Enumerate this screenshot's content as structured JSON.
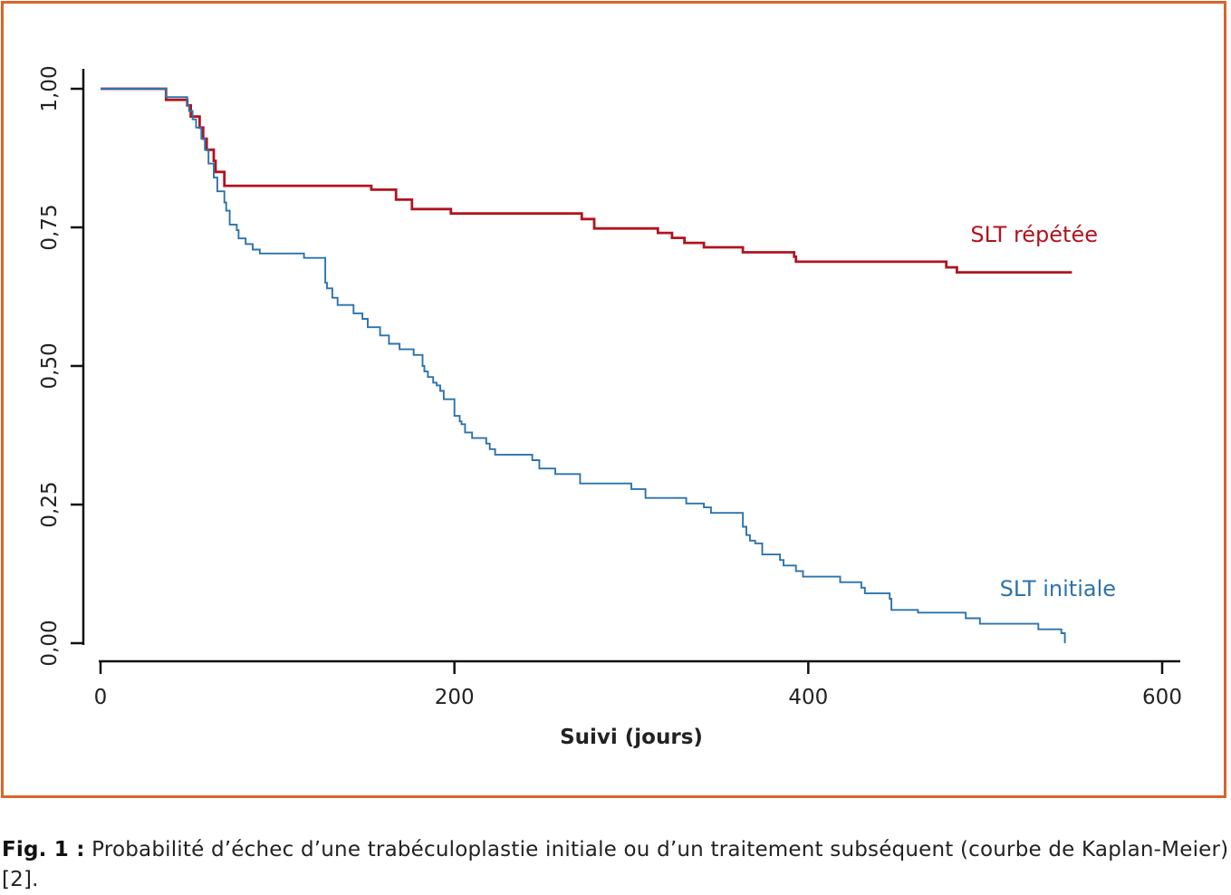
{
  "caption": {
    "label": "Fig. 1 :",
    "text": "Probabilité d’échec d’une trabéculoplastie initiale ou d’un traitement subséquent (courbe de Kaplan-Meier) [2]."
  },
  "colors": {
    "frame": "#d9642b",
    "repeat": "#b0141e",
    "initial": "#2b73ad",
    "axis": "#111111"
  },
  "chart_data": {
    "type": "line",
    "title": "",
    "xlabel": "Suivi (jours)",
    "ylabel": "",
    "xlim": [
      0,
      600
    ],
    "ylim": [
      0,
      1
    ],
    "x_ticks": [
      {
        "value": 0,
        "label": "0"
      },
      {
        "value": 200,
        "label": "200"
      },
      {
        "value": 400,
        "label": "400"
      },
      {
        "value": 600,
        "label": "600"
      }
    ],
    "y_ticks": [
      {
        "value": 0,
        "label": "0,00"
      },
      {
        "value": 0.25,
        "label": "0,25"
      },
      {
        "value": 0.5,
        "label": "0,50"
      },
      {
        "value": 0.75,
        "label": "0,75"
      },
      {
        "value": 1,
        "label": "1,00"
      }
    ],
    "grid": false,
    "legend": "inline labels at right end of curves",
    "series": [
      {
        "name": "SLT répétée",
        "step": true,
        "color": "#b0141e",
        "x": [
          0,
          37,
          49,
          51,
          56,
          58,
          60,
          64,
          65,
          70,
          153,
          167,
          176,
          198,
          272,
          279,
          315,
          323,
          330,
          341,
          363,
          392,
          393,
          478,
          484,
          549
        ],
        "y": [
          1.0,
          0.98,
          0.97,
          0.95,
          0.93,
          0.91,
          0.89,
          0.87,
          0.85,
          0.825,
          0.818,
          0.8,
          0.783,
          0.775,
          0.765,
          0.748,
          0.74,
          0.731,
          0.722,
          0.714,
          0.705,
          0.697,
          0.688,
          0.678,
          0.669,
          0.669
        ]
      },
      {
        "name": "SLT initiale",
        "step": true,
        "color": "#2b73ad",
        "x": [
          0,
          37,
          49,
          50,
          52,
          54,
          57,
          59,
          61,
          64,
          66,
          70,
          71,
          73,
          77,
          78,
          82,
          86,
          90,
          115,
          127,
          128,
          131,
          134,
          143,
          148,
          151,
          158,
          163,
          169,
          177,
          182,
          183,
          185,
          188,
          190,
          192,
          194,
          200,
          203,
          204,
          206,
          210,
          218,
          220,
          223,
          244,
          248,
          257,
          271,
          300,
          308,
          331,
          341,
          345,
          363,
          365,
          367,
          370,
          374,
          384,
          386,
          393,
          397,
          418,
          430,
          432,
          446,
          447,
          462,
          489,
          497,
          530,
          543,
          545,
          545
        ],
        "y": [
          1.0,
          0.985,
          0.97,
          0.96,
          0.945,
          0.93,
          0.91,
          0.89,
          0.865,
          0.84,
          0.815,
          0.795,
          0.78,
          0.755,
          0.745,
          0.73,
          0.72,
          0.71,
          0.703,
          0.695,
          0.65,
          0.64,
          0.623,
          0.61,
          0.595,
          0.585,
          0.57,
          0.555,
          0.54,
          0.53,
          0.52,
          0.5,
          0.49,
          0.48,
          0.47,
          0.465,
          0.455,
          0.44,
          0.41,
          0.4,
          0.395,
          0.38,
          0.37,
          0.36,
          0.35,
          0.34,
          0.33,
          0.315,
          0.305,
          0.288,
          0.278,
          0.262,
          0.252,
          0.245,
          0.235,
          0.21,
          0.195,
          0.185,
          0.18,
          0.16,
          0.15,
          0.14,
          0.13,
          0.12,
          0.11,
          0.1,
          0.09,
          0.08,
          0.06,
          0.055,
          0.045,
          0.035,
          0.025,
          0.018,
          0.0,
          0.0
        ]
      }
    ]
  }
}
